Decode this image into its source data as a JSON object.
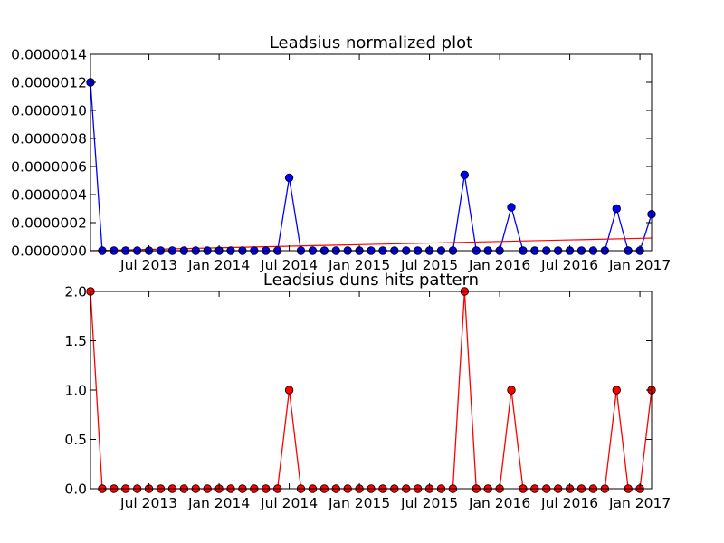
{
  "chart_data": [
    {
      "type": "line",
      "title": "Leadsius normalized plot",
      "xlabel": "",
      "ylabel": "",
      "x": [
        "2013-02",
        "2013-03",
        "2013-04",
        "2013-05",
        "2013-06",
        "2013-07",
        "2013-08",
        "2013-09",
        "2013-10",
        "2013-11",
        "2013-12",
        "2014-01",
        "2014-02",
        "2014-03",
        "2014-04",
        "2014-05",
        "2014-06",
        "2014-07",
        "2014-08",
        "2014-09",
        "2014-10",
        "2014-11",
        "2014-12",
        "2015-01",
        "2015-02",
        "2015-03",
        "2015-04",
        "2015-05",
        "2015-06",
        "2015-07",
        "2015-08",
        "2015-09",
        "2015-10",
        "2015-11",
        "2015-12",
        "2016-01",
        "2016-02",
        "2016-03",
        "2016-04",
        "2016-05",
        "2016-06",
        "2016-07",
        "2016-08",
        "2016-09",
        "2016-10",
        "2016-11",
        "2016-12",
        "2017-01",
        "2017-02"
      ],
      "series": [
        {
          "color": "#0000ff",
          "values": [
            1.2e-06,
            0,
            0,
            0,
            0,
            0,
            0,
            0,
            0,
            0,
            0,
            0,
            0,
            0,
            0,
            0,
            0,
            5.2e-07,
            0,
            0,
            0,
            0,
            0,
            0,
            0,
            0,
            0,
            0,
            0,
            0,
            0,
            0,
            5.4e-07,
            0,
            0,
            0,
            3.1e-07,
            0,
            0,
            0,
            0,
            0,
            0,
            0,
            0,
            3e-07,
            0,
            0,
            2.6e-07
          ]
        }
      ],
      "trend": {
        "color": "#ff0000",
        "start": 0.0,
        "end": 9e-08
      },
      "xticks": [
        {
          "x": "2013-07",
          "label": "Jul 2013"
        },
        {
          "x": "2014-01",
          "label": "Jan 2014"
        },
        {
          "x": "2014-07",
          "label": "Jul 2014"
        },
        {
          "x": "2015-01",
          "label": "Jan 2015"
        },
        {
          "x": "2015-07",
          "label": "Jul 2015"
        },
        {
          "x": "2016-01",
          "label": "Jan 2016"
        },
        {
          "x": "2016-07",
          "label": "Jul 2016"
        },
        {
          "x": "2017-01",
          "label": "Jan 2017"
        }
      ],
      "yticks": [
        {
          "v": 0,
          "label": "0.0000000"
        },
        {
          "v": 2e-07,
          "label": "0.0000002"
        },
        {
          "v": 4e-07,
          "label": "0.0000004"
        },
        {
          "v": 6e-07,
          "label": "0.0000006"
        },
        {
          "v": 8e-07,
          "label": "0.0000008"
        },
        {
          "v": 1e-06,
          "label": "0.0000010"
        },
        {
          "v": 1.2e-06,
          "label": "0.0000012"
        },
        {
          "v": 1.4e-06,
          "label": "0.0000014"
        }
      ],
      "ylim": [
        0,
        1.4e-06
      ],
      "xlim": [
        "2013-02",
        "2017-02"
      ],
      "grid": false,
      "marker_color": "#0000ff"
    },
    {
      "type": "line",
      "title": "Leadsius duns hits pattern",
      "xlabel": "",
      "ylabel": "",
      "x": [
        "2013-02",
        "2013-03",
        "2013-04",
        "2013-05",
        "2013-06",
        "2013-07",
        "2013-08",
        "2013-09",
        "2013-10",
        "2013-11",
        "2013-12",
        "2014-01",
        "2014-02",
        "2014-03",
        "2014-04",
        "2014-05",
        "2014-06",
        "2014-07",
        "2014-08",
        "2014-09",
        "2014-10",
        "2014-11",
        "2014-12",
        "2015-01",
        "2015-02",
        "2015-03",
        "2015-04",
        "2015-05",
        "2015-06",
        "2015-07",
        "2015-08",
        "2015-09",
        "2015-10",
        "2015-11",
        "2015-12",
        "2016-01",
        "2016-02",
        "2016-03",
        "2016-04",
        "2016-05",
        "2016-06",
        "2016-07",
        "2016-08",
        "2016-09",
        "2016-10",
        "2016-11",
        "2016-12",
        "2017-01",
        "2017-02"
      ],
      "series": [
        {
          "color": "#ff0000",
          "values": [
            2,
            0,
            0,
            0,
            0,
            0,
            0,
            0,
            0,
            0,
            0,
            0,
            0,
            0,
            0,
            0,
            0,
            1,
            0,
            0,
            0,
            0,
            0,
            0,
            0,
            0,
            0,
            0,
            0,
            0,
            0,
            0,
            2,
            0,
            0,
            0,
            1,
            0,
            0,
            0,
            0,
            0,
            0,
            0,
            0,
            1,
            0,
            0,
            1
          ]
        }
      ],
      "xticks": [
        {
          "x": "2013-07",
          "label": "Jul 2013"
        },
        {
          "x": "2014-01",
          "label": "Jan 2014"
        },
        {
          "x": "2014-07",
          "label": "Jul 2014"
        },
        {
          "x": "2015-01",
          "label": "Jan 2015"
        },
        {
          "x": "2015-07",
          "label": "Jul 2015"
        },
        {
          "x": "2016-01",
          "label": "Jan 2016"
        },
        {
          "x": "2016-07",
          "label": "Jul 2016"
        },
        {
          "x": "2017-01",
          "label": "Jan 2017"
        }
      ],
      "yticks": [
        {
          "v": 0,
          "label": "0.0"
        },
        {
          "v": 0.5,
          "label": "0.5"
        },
        {
          "v": 1,
          "label": "1.0"
        },
        {
          "v": 1.5,
          "label": "1.5"
        },
        {
          "v": 2,
          "label": "2.0"
        }
      ],
      "ylim": [
        0,
        2
      ],
      "xlim": [
        "2013-02",
        "2017-02"
      ],
      "grid": false,
      "marker_color": "#ff0000"
    }
  ]
}
